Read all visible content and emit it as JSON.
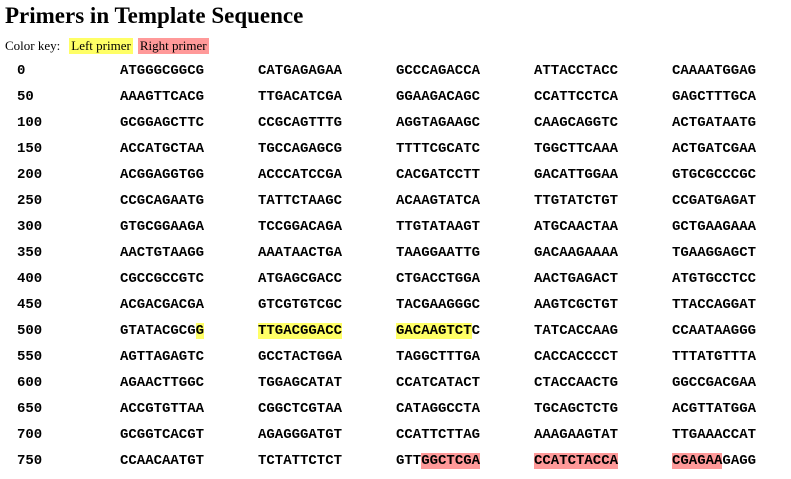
{
  "title": "Primers in Template Sequence",
  "color_key": {
    "label": "Color key:",
    "left_primer": "Left primer",
    "right_primer": "Right primer"
  },
  "colors": {
    "left_primer": "#ffff66",
    "right_primer": "#ff9999"
  },
  "rows": [
    {
      "index": "0",
      "blocks": [
        "ATGGGCGGCG",
        "CATGAGAGAA",
        "GCCCAGACCA",
        "ATTACCTACC",
        "CAAAATGGAG"
      ]
    },
    {
      "index": "50",
      "blocks": [
        "AAAGTTCACG",
        "TTGACATCGA",
        "GGAAGACAGC",
        "CCATTCCTCA",
        "GAGCTTTGCA"
      ]
    },
    {
      "index": "100",
      "blocks": [
        "GCGGAGCTTC",
        "CCGCAGTTTG",
        "AGGTAGAAGC",
        "CAAGCAGGTC",
        "ACTGATAATG"
      ]
    },
    {
      "index": "150",
      "blocks": [
        "ACCATGCTAA",
        "TGCCAGAGCG",
        "TTTTCGCATC",
        "TGGCTTCAAA",
        "ACTGATCGAA"
      ]
    },
    {
      "index": "200",
      "blocks": [
        "ACGGAGGTGG",
        "ACCCATCCGA",
        "CACGATCCTT",
        "GACATTGGAA",
        "GTGCGCCCGC"
      ]
    },
    {
      "index": "250",
      "blocks": [
        "CCGCAGAATG",
        "TATTCTAAGC",
        "ACAAGTATCA",
        "TTGTATCTGT",
        "CCGATGAGAT"
      ]
    },
    {
      "index": "300",
      "blocks": [
        "GTGCGGAAGA",
        "TCCGGACAGA",
        "TTGTATAAGT",
        "ATGCAACTAA",
        "GCTGAAGAAA"
      ]
    },
    {
      "index": "350",
      "blocks": [
        "AACTGTAAGG",
        "AAATAACTGA",
        "TAAGGAATTG",
        "GACAAGAAAA",
        "TGAAGGAGCT"
      ]
    },
    {
      "index": "400",
      "blocks": [
        "CGCCGCCGTC",
        "ATGAGCGACC",
        "CTGACCTGGA",
        "AACTGAGACT",
        "ATGTGCCTCC"
      ]
    },
    {
      "index": "450",
      "blocks": [
        "ACGACGACGA",
        "GTCGTGTCGC",
        "TACGAAGGGC",
        "AAGTCGCTGT",
        "TTACCAGGAT"
      ]
    },
    {
      "index": "500",
      "blocks": [
        "GTATACGCGG",
        "TTGACGGACC",
        "GACAAGTCTC",
        "TATCACCAAG",
        "CCAATAAGGG"
      ]
    },
    {
      "index": "550",
      "blocks": [
        "AGTTAGAGTC",
        "GCCTACTGGA",
        "TAGGCTTTGA",
        "CACCACCCCT",
        "TTTATGTTTA"
      ]
    },
    {
      "index": "600",
      "blocks": [
        "AGAACTTGGC",
        "TGGAGCATAT",
        "CCATCATACT",
        "CTACCAACTG",
        "GGCCGACGAA"
      ]
    },
    {
      "index": "650",
      "blocks": [
        "ACCGTGTTAA",
        "CGGCTCGTAA",
        "CATAGGCCTA",
        "TGCAGCTCTG",
        "ACGTTATGGA"
      ]
    },
    {
      "index": "700",
      "blocks": [
        "GCGGTCACGT",
        "AGAGGGATGT",
        "CCATTCTTAG",
        "AAAGAAGTAT",
        "TTGAAACCAT"
      ]
    },
    {
      "index": "750",
      "blocks": [
        "CCAACAATGT",
        "TCTATTCTCT",
        "GTTGGCTCGA",
        "CCATCTACCA",
        "CGAGAAGAGG"
      ]
    }
  ],
  "primers": [
    {
      "name": "Left primer",
      "start": 509,
      "end": 528,
      "color_key": "left_primer"
    },
    {
      "name": "Right primer",
      "start": 773,
      "end": 795,
      "color_key": "right_primer"
    }
  ]
}
